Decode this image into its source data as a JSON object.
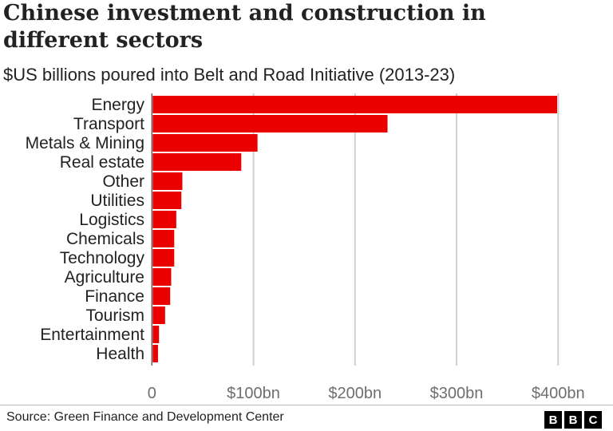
{
  "chart_data": {
    "type": "bar",
    "orientation": "horizontal",
    "title": "Chinese investment and construction in different sectors",
    "subtitle": "$US billions poured into Belt and Road Initiative (2013-23)",
    "categories": [
      "Energy",
      "Transport",
      "Metals & Mining",
      "Real estate",
      "Other",
      "Utilities",
      "Logistics",
      "Chemicals",
      "Technology",
      "Agriculture",
      "Finance",
      "Tourism",
      "Entertainment",
      "Health"
    ],
    "values": [
      399,
      232,
      104,
      88,
      30,
      29,
      24,
      22,
      22,
      19,
      18,
      13,
      7,
      6
    ],
    "xlim": [
      0,
      400
    ],
    "xticks": [
      0,
      100,
      200,
      300,
      400
    ],
    "xtick_labels": [
      "0",
      "$100bn",
      "$200bn",
      "$300bn",
      "$400bn"
    ],
    "grid": true,
    "bar_color": "#eb0000"
  },
  "footer": {
    "source": "Source: Green Finance and Development Center",
    "logo": [
      "B",
      "B",
      "C"
    ]
  }
}
